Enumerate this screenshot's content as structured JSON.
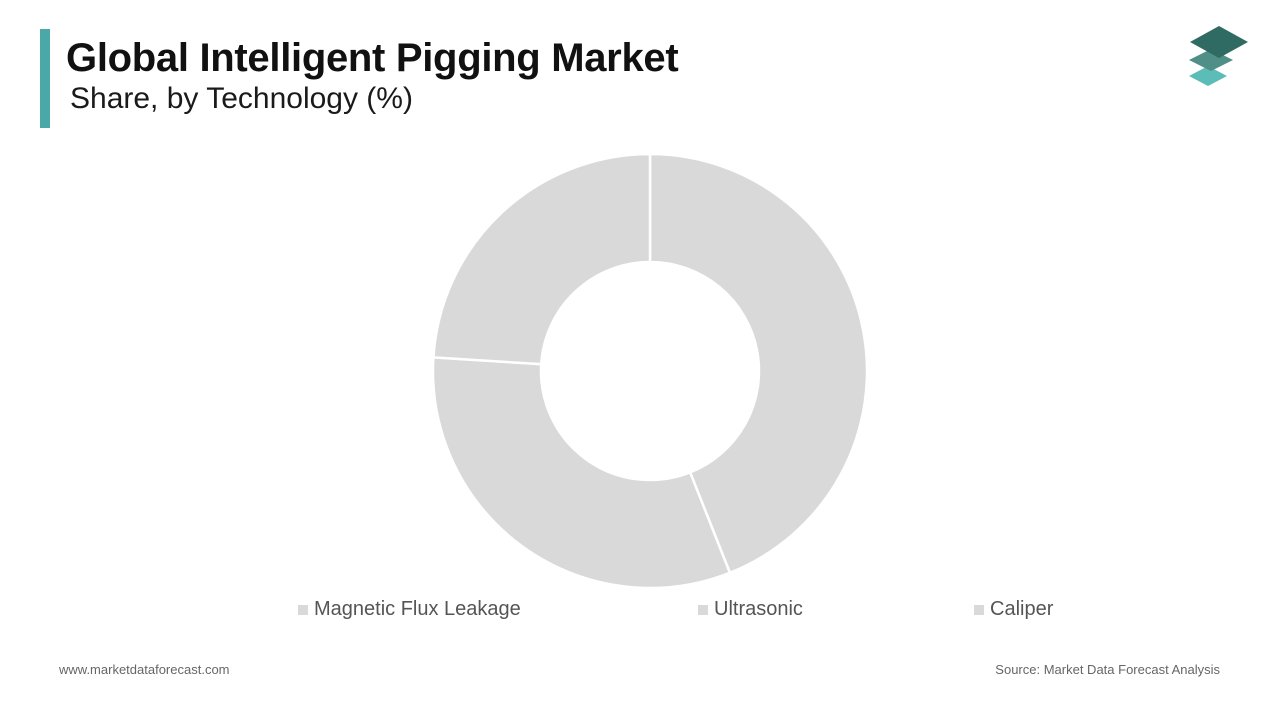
{
  "header": {
    "title": "Global Intelligent Pigging Market",
    "subtitle": "Share, by Technology (%)"
  },
  "colors": {
    "accent": "#4aa8a8",
    "slice": "#d9d9d9",
    "separator": "#ffffff",
    "logo_dark": "#2f6b63",
    "logo_mid": "#4f8f87",
    "logo_light": "#5bbcb8"
  },
  "logo": {
    "icon": "stacked-layers-icon"
  },
  "chart_data": {
    "type": "pie",
    "donut": true,
    "categories": [
      "Magnetic Flux Leakage",
      "Ultrasonic",
      "Caliper"
    ],
    "values": [
      44,
      32,
      24
    ],
    "unit": "%",
    "legend_position": "bottom"
  },
  "footer": {
    "website": "www.marketdataforecast.com",
    "source": "Source: Market Data Forecast Analysis"
  }
}
